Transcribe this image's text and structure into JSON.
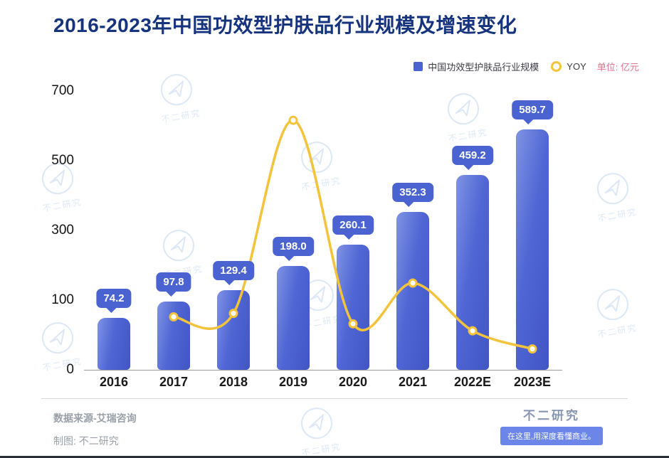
{
  "title": "2016-2023年中国功效型护肤品行业规模及增速变化",
  "legend": {
    "series1": "中国功效型护肤品行业规模",
    "series2": "YOY",
    "unit": "单位: 亿元"
  },
  "chart_data": {
    "type": "bar",
    "combo": "bar+line",
    "categories": [
      "2016",
      "2017",
      "2018",
      "2019",
      "2020",
      "2021",
      "2022E",
      "2023E"
    ],
    "series": [
      {
        "name": "中国功效型护肤品行业规模",
        "type": "bar",
        "values": [
          74.2,
          97.8,
          129.4,
          198.0,
          260.1,
          352.3,
          459.2,
          589.7
        ],
        "labels": [
          "74.2",
          "97.8",
          "129.4",
          "198.0",
          "260.1",
          "352.3",
          "459.2",
          "589.7"
        ],
        "color": "#4a63d0"
      },
      {
        "name": "YOY",
        "type": "line",
        "axis": "secondary-unlabeled",
        "note": "YOY line has no printed data labels; values are visual estimates read on the primary-axis scale",
        "values_visual": [
          null,
          76,
          81,
          616,
          66,
          149,
          56,
          30
        ],
        "color": "#f3c33b"
      }
    ],
    "ylim": [
      0,
      700
    ],
    "yticks": [
      0,
      100,
      300,
      500,
      700
    ],
    "ytick_note": "non-linear axis: listed ticks are equally spaced",
    "unit": "亿元",
    "legend_position": "top-right",
    "grid": false
  },
  "footer": {
    "source": "数据来源-艾瑞咨询",
    "credit": "制图: 不二研究",
    "brand": "不二研究",
    "tagline": "在这里,用深度看懂商业。"
  },
  "watermark": {
    "text": "不二研究"
  },
  "colors": {
    "title": "#16337d",
    "bar": "#4a63d0",
    "line": "#f3c33b",
    "unit_label": "#e4708c",
    "tagline_bg": "#6b85e8",
    "watermark": "#bcd2ef"
  }
}
